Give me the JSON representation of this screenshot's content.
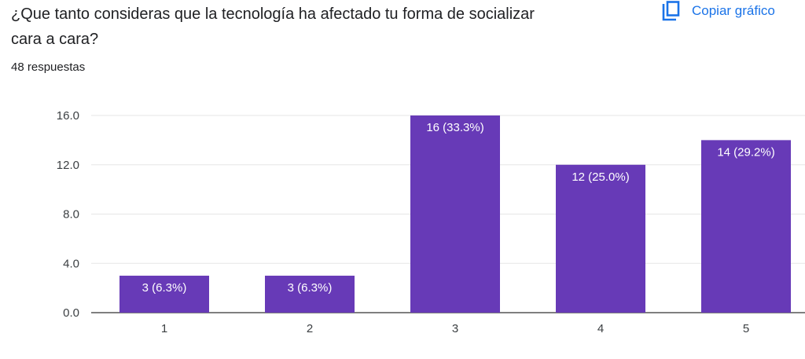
{
  "question": {
    "line1": "¿Que tanto consideras que la tecnología ha afectado tu forma de socializar",
    "line2": "cara a cara?"
  },
  "responses_count": "48 respuestas",
  "copy_button": {
    "label": "Copiar gráfico",
    "icon": "copy-icon"
  },
  "colors": {
    "bar": "#673ab7",
    "accent": "#1a73e8"
  },
  "chart_data": {
    "type": "bar",
    "categories": [
      "1",
      "2",
      "3",
      "4",
      "5"
    ],
    "values": [
      3,
      3,
      16,
      12,
      14
    ],
    "data_labels": [
      "3 (6.3%)",
      "3 (6.3%)",
      "16 (33.3%)",
      "12 (25.0%)",
      "14 (29.2%)"
    ],
    "yticks": [
      "0.0",
      "4.0",
      "8.0",
      "12.0",
      "16.0"
    ],
    "ytick_values": [
      0,
      4,
      8,
      12,
      16
    ],
    "ylim": [
      0,
      16
    ],
    "title": "",
    "xlabel": "",
    "ylabel": "",
    "grid": true
  }
}
